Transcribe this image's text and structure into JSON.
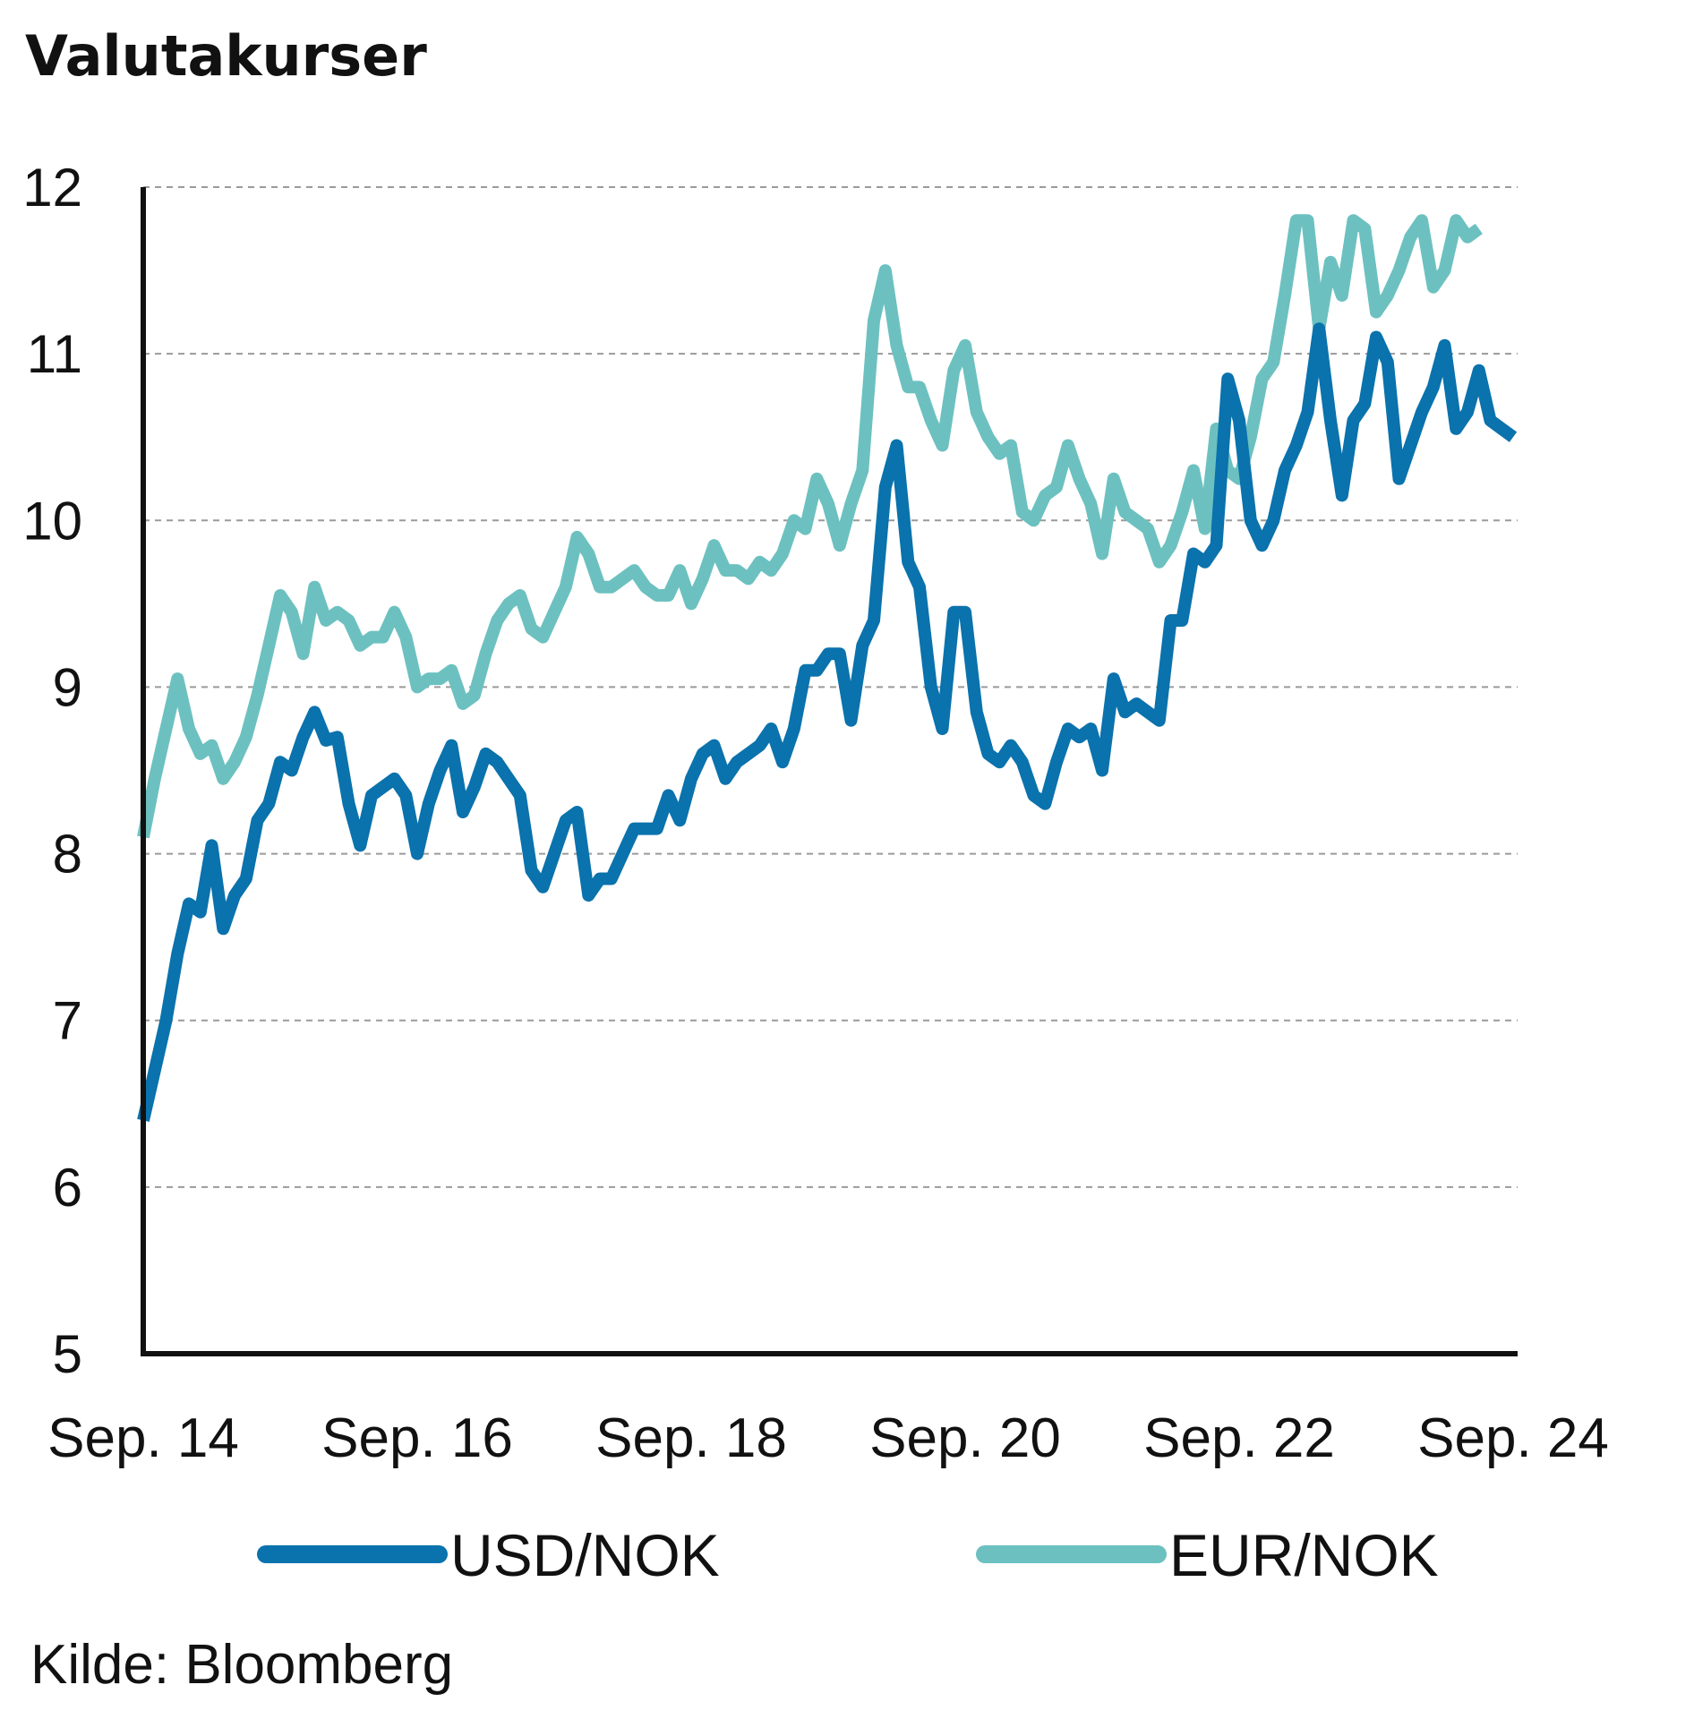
{
  "title": "Valutakurser",
  "source": "Kilde: Bloomberg",
  "colors": {
    "USD/NOK": "#0a72ac",
    "EUR/NOK": "#6cc1c0",
    "axis": "#111111",
    "grid": "#9a9a9a"
  },
  "chart_data": {
    "type": "line",
    "title": "Valutakurser",
    "xlabel": "",
    "ylabel": "",
    "ylim": [
      5,
      12
    ],
    "yticks": [
      "5",
      "6",
      "7",
      "8",
      "9",
      "10",
      "11",
      "12"
    ],
    "xlim": [
      "2014-09",
      "2024-11"
    ],
    "xticks": [
      {
        "label": "Sep. 14",
        "date": "2014-09"
      },
      {
        "label": "Sep. 16",
        "date": "2016-09"
      },
      {
        "label": "Sep. 18",
        "date": "2018-09"
      },
      {
        "label": "Sep. 20",
        "date": "2020-09"
      },
      {
        "label": "Sep. 22",
        "date": "2022-09"
      },
      {
        "label": "Sep. 24",
        "date": "2024-09"
      }
    ],
    "grid": true,
    "legend": "bottom",
    "series": [
      {
        "name": "USD/NOK",
        "color": "#0a72ac",
        "points": [
          [
            "2014-09",
            6.4
          ],
          [
            "2014-10",
            6.7
          ],
          [
            "2014-11",
            7.0
          ],
          [
            "2014-12",
            7.4
          ],
          [
            "2015-01",
            7.7
          ],
          [
            "2015-02",
            7.65
          ],
          [
            "2015-03",
            8.05
          ],
          [
            "2015-04",
            7.55
          ],
          [
            "2015-05",
            7.75
          ],
          [
            "2015-06",
            7.85
          ],
          [
            "2015-07",
            8.2
          ],
          [
            "2015-08",
            8.3
          ],
          [
            "2015-09",
            8.55
          ],
          [
            "2015-10",
            8.5
          ],
          [
            "2015-11",
            8.7
          ],
          [
            "2015-12",
            8.85
          ],
          [
            "2016-01",
            8.68
          ],
          [
            "2016-02",
            8.7
          ],
          [
            "2016-03",
            8.3
          ],
          [
            "2016-04",
            8.05
          ],
          [
            "2016-05",
            8.35
          ],
          [
            "2016-06",
            8.4
          ],
          [
            "2016-07",
            8.45
          ],
          [
            "2016-08",
            8.35
          ],
          [
            "2016-09",
            8.0
          ],
          [
            "2016-10",
            8.3
          ],
          [
            "2016-11",
            8.5
          ],
          [
            "2016-12",
            8.65
          ],
          [
            "2017-01",
            8.25
          ],
          [
            "2017-02",
            8.4
          ],
          [
            "2017-03",
            8.6
          ],
          [
            "2017-04",
            8.55
          ],
          [
            "2017-05",
            8.45
          ],
          [
            "2017-06",
            8.35
          ],
          [
            "2017-07",
            7.9
          ],
          [
            "2017-08",
            7.8
          ],
          [
            "2017-09",
            8.0
          ],
          [
            "2017-10",
            8.2
          ],
          [
            "2017-11",
            8.25
          ],
          [
            "2017-12",
            7.75
          ],
          [
            "2018-01",
            7.85
          ],
          [
            "2018-02",
            7.85
          ],
          [
            "2018-03",
            8.0
          ],
          [
            "2018-04",
            8.15
          ],
          [
            "2018-05",
            8.15
          ],
          [
            "2018-06",
            8.15
          ],
          [
            "2018-07",
            8.35
          ],
          [
            "2018-08",
            8.2
          ],
          [
            "2018-09",
            8.45
          ],
          [
            "2018-10",
            8.6
          ],
          [
            "2018-11",
            8.65
          ],
          [
            "2018-12",
            8.45
          ],
          [
            "2019-01",
            8.55
          ],
          [
            "2019-02",
            8.6
          ],
          [
            "2019-03",
            8.65
          ],
          [
            "2019-04",
            8.75
          ],
          [
            "2019-05",
            8.55
          ],
          [
            "2019-06",
            8.75
          ],
          [
            "2019-07",
            9.1
          ],
          [
            "2019-08",
            9.1
          ],
          [
            "2019-09",
            9.2
          ],
          [
            "2019-10",
            9.2
          ],
          [
            "2019-11",
            8.8
          ],
          [
            "2019-12",
            9.25
          ],
          [
            "2020-01",
            9.4
          ],
          [
            "2020-02",
            10.2
          ],
          [
            "2020-03",
            10.45
          ],
          [
            "2020-04",
            9.75
          ],
          [
            "2020-05",
            9.6
          ],
          [
            "2020-06",
            9.0
          ],
          [
            "2020-07",
            8.75
          ],
          [
            "2020-08",
            9.45
          ],
          [
            "2020-09",
            9.45
          ],
          [
            "2020-10",
            8.85
          ],
          [
            "2020-11",
            8.6
          ],
          [
            "2020-12",
            8.55
          ],
          [
            "2021-01",
            8.65
          ],
          [
            "2021-02",
            8.55
          ],
          [
            "2021-03",
            8.35
          ],
          [
            "2021-04",
            8.3
          ],
          [
            "2021-05",
            8.55
          ],
          [
            "2021-06",
            8.75
          ],
          [
            "2021-07",
            8.7
          ],
          [
            "2021-08",
            8.75
          ],
          [
            "2021-09",
            8.5
          ],
          [
            "2021-10",
            9.05
          ],
          [
            "2021-11",
            8.85
          ],
          [
            "2021-12",
            8.9
          ],
          [
            "2022-01",
            8.85
          ],
          [
            "2022-02",
            8.8
          ],
          [
            "2022-03",
            9.4
          ],
          [
            "2022-04",
            9.4
          ],
          [
            "2022-05",
            9.8
          ],
          [
            "2022-06",
            9.75
          ],
          [
            "2022-07",
            9.85
          ],
          [
            "2022-08",
            10.85
          ],
          [
            "2022-09",
            10.6
          ],
          [
            "2022-10",
            10.0
          ],
          [
            "2022-11",
            9.85
          ],
          [
            "2022-12",
            10.0
          ],
          [
            "2023-01",
            10.3
          ],
          [
            "2023-02",
            10.45
          ],
          [
            "2023-03",
            10.65
          ],
          [
            "2023-04",
            11.15
          ],
          [
            "2023-05",
            10.6
          ],
          [
            "2023-06",
            10.15
          ],
          [
            "2023-07",
            10.6
          ],
          [
            "2023-08",
            10.7
          ],
          [
            "2023-09",
            11.1
          ],
          [
            "2023-10",
            10.95
          ],
          [
            "2023-11",
            10.25
          ],
          [
            "2023-12",
            10.45
          ],
          [
            "2024-01",
            10.65
          ],
          [
            "2024-02",
            10.8
          ],
          [
            "2024-03",
            11.05
          ],
          [
            "2024-04",
            10.55
          ],
          [
            "2024-05",
            10.65
          ],
          [
            "2024-06",
            10.9
          ],
          [
            "2024-07",
            10.6
          ],
          [
            "2024-08",
            10.55
          ],
          [
            "2024-09",
            10.5
          ]
        ]
      },
      {
        "name": "EUR/NOK",
        "color": "#6cc1c0",
        "points": [
          [
            "2014-09",
            8.1
          ],
          [
            "2014-10",
            8.45
          ],
          [
            "2014-11",
            8.75
          ],
          [
            "2014-12",
            9.05
          ],
          [
            "2015-01",
            8.75
          ],
          [
            "2015-02",
            8.6
          ],
          [
            "2015-03",
            8.65
          ],
          [
            "2015-04",
            8.45
          ],
          [
            "2015-05",
            8.55
          ],
          [
            "2015-06",
            8.7
          ],
          [
            "2015-07",
            8.95
          ],
          [
            "2015-08",
            9.25
          ],
          [
            "2015-09",
            9.55
          ],
          [
            "2015-10",
            9.45
          ],
          [
            "2015-11",
            9.2
          ],
          [
            "2015-12",
            9.6
          ],
          [
            "2016-01",
            9.4
          ],
          [
            "2016-02",
            9.45
          ],
          [
            "2016-03",
            9.4
          ],
          [
            "2016-04",
            9.25
          ],
          [
            "2016-05",
            9.3
          ],
          [
            "2016-06",
            9.3
          ],
          [
            "2016-07",
            9.45
          ],
          [
            "2016-08",
            9.3
          ],
          [
            "2016-09",
            9.0
          ],
          [
            "2016-10",
            9.05
          ],
          [
            "2016-11",
            9.05
          ],
          [
            "2016-12",
            9.1
          ],
          [
            "2017-01",
            8.9
          ],
          [
            "2017-02",
            8.95
          ],
          [
            "2017-03",
            9.2
          ],
          [
            "2017-04",
            9.4
          ],
          [
            "2017-05",
            9.5
          ],
          [
            "2017-06",
            9.55
          ],
          [
            "2017-07",
            9.35
          ],
          [
            "2017-08",
            9.3
          ],
          [
            "2017-09",
            9.45
          ],
          [
            "2017-10",
            9.6
          ],
          [
            "2017-11",
            9.9
          ],
          [
            "2017-12",
            9.8
          ],
          [
            "2018-01",
            9.6
          ],
          [
            "2018-02",
            9.6
          ],
          [
            "2018-03",
            9.65
          ],
          [
            "2018-04",
            9.7
          ],
          [
            "2018-05",
            9.6
          ],
          [
            "2018-06",
            9.55
          ],
          [
            "2018-07",
            9.55
          ],
          [
            "2018-08",
            9.7
          ],
          [
            "2018-09",
            9.5
          ],
          [
            "2018-10",
            9.65
          ],
          [
            "2018-11",
            9.85
          ],
          [
            "2018-12",
            9.7
          ],
          [
            "2019-01",
            9.7
          ],
          [
            "2019-02",
            9.65
          ],
          [
            "2019-03",
            9.75
          ],
          [
            "2019-04",
            9.7
          ],
          [
            "2019-05",
            9.8
          ],
          [
            "2019-06",
            10.0
          ],
          [
            "2019-07",
            9.95
          ],
          [
            "2019-08",
            10.25
          ],
          [
            "2019-09",
            10.1
          ],
          [
            "2019-10",
            9.85
          ],
          [
            "2019-11",
            10.1
          ],
          [
            "2019-12",
            10.3
          ],
          [
            "2020-01",
            11.2
          ],
          [
            "2020-02",
            11.5
          ],
          [
            "2020-03",
            11.05
          ],
          [
            "2020-04",
            10.8
          ],
          [
            "2020-05",
            10.8
          ],
          [
            "2020-06",
            10.6
          ],
          [
            "2020-07",
            10.45
          ],
          [
            "2020-08",
            10.9
          ],
          [
            "2020-09",
            11.05
          ],
          [
            "2020-10",
            10.65
          ],
          [
            "2020-11",
            10.5
          ],
          [
            "2020-12",
            10.4
          ],
          [
            "2021-01",
            10.45
          ],
          [
            "2021-02",
            10.05
          ],
          [
            "2021-03",
            10.0
          ],
          [
            "2021-04",
            10.15
          ],
          [
            "2021-05",
            10.2
          ],
          [
            "2021-06",
            10.45
          ],
          [
            "2021-07",
            10.25
          ],
          [
            "2021-08",
            10.1
          ],
          [
            "2021-09",
            9.8
          ],
          [
            "2021-10",
            10.25
          ],
          [
            "2021-11",
            10.05
          ],
          [
            "2021-12",
            10.0
          ],
          [
            "2022-01",
            9.95
          ],
          [
            "2022-02",
            9.75
          ],
          [
            "2022-03",
            9.85
          ],
          [
            "2022-04",
            10.05
          ],
          [
            "2022-05",
            10.3
          ],
          [
            "2022-06",
            9.95
          ],
          [
            "2022-07",
            10.55
          ],
          [
            "2022-08",
            10.3
          ],
          [
            "2022-09",
            10.25
          ],
          [
            "2022-10",
            10.5
          ],
          [
            "2022-11",
            10.85
          ],
          [
            "2022-12",
            10.95
          ],
          [
            "2023-01",
            11.35
          ],
          [
            "2023-02",
            11.8
          ],
          [
            "2023-03",
            11.8
          ],
          [
            "2023-04",
            11.15
          ],
          [
            "2023-05",
            11.55
          ],
          [
            "2023-06",
            11.35
          ],
          [
            "2023-07",
            11.8
          ],
          [
            "2023-08",
            11.75
          ],
          [
            "2023-09",
            11.25
          ],
          [
            "2023-10",
            11.35
          ],
          [
            "2023-11",
            11.5
          ],
          [
            "2023-12",
            11.7
          ],
          [
            "2024-01",
            11.8
          ],
          [
            "2024-02",
            11.4
          ],
          [
            "2024-03",
            11.5
          ],
          [
            "2024-04",
            11.8
          ],
          [
            "2024-05",
            11.7
          ],
          [
            "2024-06",
            11.75
          ]
        ]
      }
    ]
  }
}
